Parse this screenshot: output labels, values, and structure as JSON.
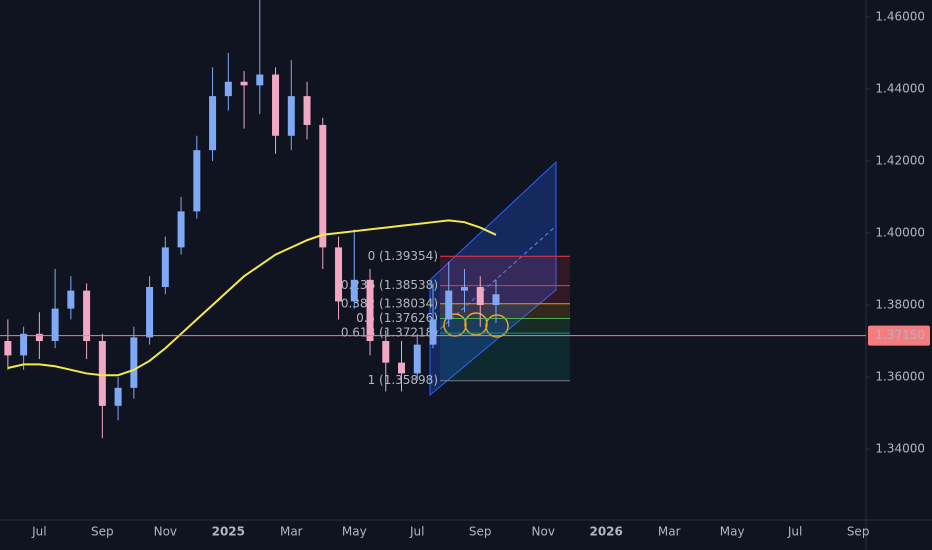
{
  "chart_data": {
    "type": "candlestick",
    "categories": [
      null,
      null,
      "Jul",
      null,
      null,
      null,
      "Sep",
      null,
      null,
      null,
      "Nov",
      null,
      null,
      null,
      "2025",
      null,
      null,
      null,
      "Mar",
      null,
      null,
      null,
      "May",
      null,
      null,
      null,
      "Jul",
      null,
      null,
      null,
      "Sep",
      null,
      null,
      null,
      "Nov",
      null,
      null,
      null,
      "2026",
      null,
      null,
      null,
      "Mar",
      null,
      null,
      null,
      "May",
      null,
      null,
      null,
      "Jul",
      null,
      null,
      null,
      "Sep"
    ],
    "open": [
      1.37,
      1.366,
      1.372,
      1.37,
      1.379,
      1.384,
      1.37,
      1.352,
      1.357,
      1.371,
      1.385,
      1.396,
      1.406,
      1.423,
      1.438,
      1.442,
      1.441,
      1.444,
      1.427,
      1.438,
      1.43,
      1.396,
      1.381,
      1.387,
      1.37,
      1.364,
      1.361,
      1.369,
      1.376,
      1.384,
      1.385,
      1.38,
      null,
      null,
      null,
      null,
      null,
      null,
      null,
      null,
      null,
      null,
      null,
      null,
      null,
      null,
      null,
      null,
      null,
      null,
      null,
      null,
      null,
      null,
      null
    ],
    "high": [
      1.376,
      1.374,
      1.378,
      1.39,
      1.388,
      1.386,
      1.372,
      1.36,
      1.374,
      1.388,
      1.399,
      1.41,
      1.427,
      1.446,
      1.45,
      1.445,
      1.465,
      1.446,
      1.448,
      1.442,
      1.432,
      1.399,
      1.401,
      1.39,
      1.373,
      1.37,
      1.372,
      1.386,
      1.392,
      1.39,
      1.388,
      1.387,
      null,
      null,
      null,
      null,
      null,
      null,
      null,
      null,
      null,
      null,
      null,
      null,
      null,
      null,
      null,
      null,
      null,
      null,
      null,
      null,
      null,
      null,
      null
    ],
    "low": [
      1.362,
      1.362,
      1.365,
      1.368,
      1.376,
      1.365,
      1.343,
      1.348,
      1.354,
      1.369,
      1.383,
      1.394,
      1.404,
      1.42,
      1.434,
      1.429,
      1.433,
      1.422,
      1.423,
      1.426,
      1.39,
      1.376,
      1.379,
      1.366,
      1.356,
      1.356,
      1.359,
      1.368,
      1.374,
      1.378,
      1.374,
      1.375,
      null,
      null,
      null,
      null,
      null,
      null,
      null,
      null,
      null,
      null,
      null,
      null,
      null,
      null,
      null,
      null,
      null,
      null,
      null,
      null,
      null,
      null,
      null
    ],
    "close": [
      1.366,
      1.372,
      1.37,
      1.379,
      1.384,
      1.37,
      1.352,
      1.357,
      1.371,
      1.385,
      1.396,
      1.406,
      1.423,
      1.438,
      1.442,
      1.441,
      1.444,
      1.427,
      1.438,
      1.43,
      1.396,
      1.381,
      1.387,
      1.37,
      1.364,
      1.361,
      1.369,
      1.376,
      1.384,
      1.385,
      1.38,
      1.383,
      null,
      null,
      null,
      null,
      null,
      null,
      null,
      null,
      null,
      null,
      null,
      null,
      null,
      null,
      null,
      null,
      null,
      null,
      null,
      null,
      null,
      null,
      null
    ],
    "up_color": "#7fa8f5",
    "down_color": "#f2a7c3",
    "moving_average": {
      "color": "#f5e94a",
      "values": [
        1.3625,
        1.3635,
        1.3635,
        1.363,
        1.362,
        1.361,
        1.3605,
        1.3605,
        1.362,
        1.3645,
        1.368,
        1.372,
        1.376,
        1.38,
        1.384,
        1.388,
        1.391,
        1.394,
        1.396,
        1.398,
        1.3995,
        1.4,
        1.4005,
        1.401,
        1.4015,
        1.402,
        1.4025,
        1.403,
        1.4035,
        1.403,
        1.4015,
        1.3995,
        null,
        null,
        null,
        null,
        null,
        null,
        null,
        null,
        null,
        null,
        null,
        null,
        null,
        null,
        null,
        null,
        null,
        null,
        null,
        null,
        null,
        null,
        null
      ]
    },
    "fib_levels": [
      {
        "value": 1.39354,
        "label": "0 (1.39354)",
        "color": "#f23645"
      },
      {
        "value": 1.38538,
        "label": "0.236 (1.38538)",
        "color": "#f23645"
      },
      {
        "value": 1.38034,
        "label": "0.382 (1.38034)",
        "color": "#ff9800"
      },
      {
        "value": 1.37626,
        "label": "0.5 (1.37626)",
        "color": "#4caf50"
      },
      {
        "value": 1.37218,
        "label": "0.618 (1.37218)",
        "color": "#089981"
      },
      {
        "value": 1.35898,
        "label": "1 (1.35898)",
        "color": "#787b86"
      }
    ],
    "price_line": {
      "value": 1.3715,
      "label": "1.37150",
      "color": "#f77c80"
    },
    "ylim": [
      1.3203,
      1.4647
    ],
    "yticks": [
      {
        "value": 1.34,
        "label": "1.34000"
      },
      {
        "value": 1.36,
        "label": "1.36000"
      },
      {
        "value": 1.38,
        "label": "1.38000"
      },
      {
        "value": 1.4,
        "label": "1.40000"
      },
      {
        "value": 1.42,
        "label": "1.42000"
      },
      {
        "value": 1.44,
        "label": "1.44000"
      },
      {
        "value": 1.46,
        "label": "1.46000"
      }
    ]
  }
}
